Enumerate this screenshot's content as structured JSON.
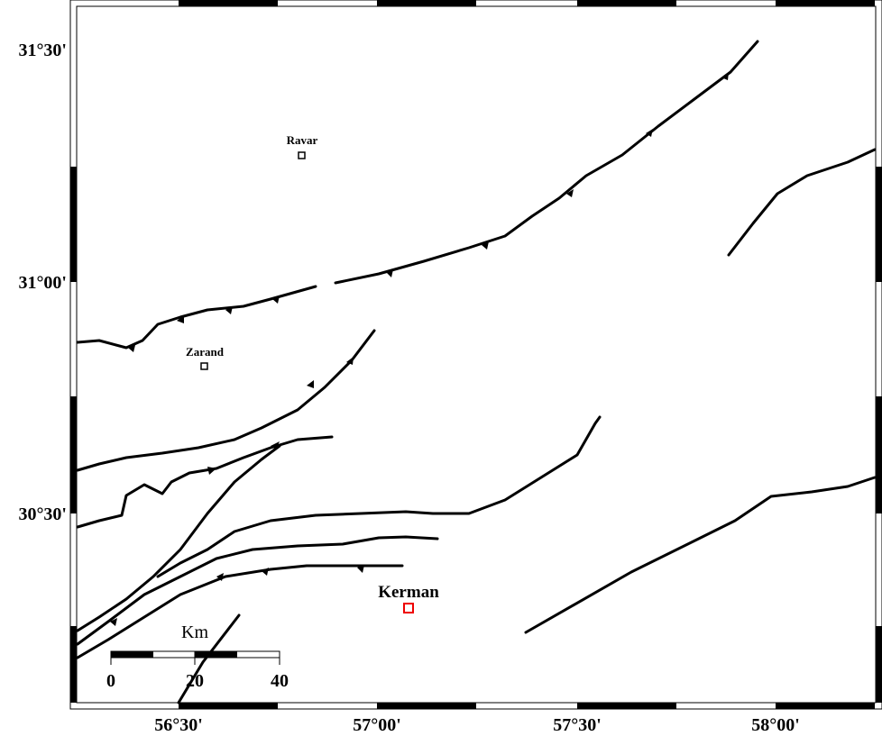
{
  "map": {
    "y_labels": [
      "31°30'",
      "31°00'",
      "30°30'"
    ],
    "x_labels": [
      "56°30'",
      "57°00'",
      "57°30'",
      "58°00'"
    ],
    "places": [
      {
        "label": "Ravar"
      },
      {
        "label": "Zarand"
      },
      {
        "label": "Kerman"
      }
    ],
    "scale": {
      "unit": "Km",
      "labels": [
        "0",
        "20",
        "40"
      ]
    }
  }
}
